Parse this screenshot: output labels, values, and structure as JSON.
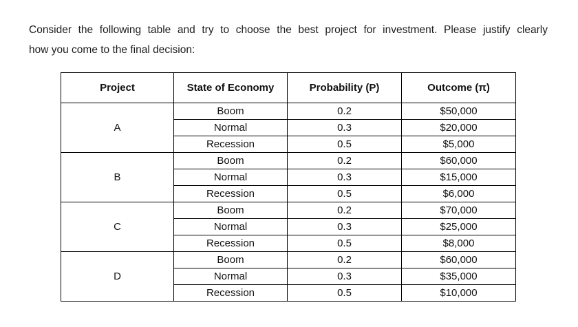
{
  "intro": {
    "lines": [
      "Consider the following table and try to choose the best project for investment. Please justify clearly",
      "how you come to the final decision:"
    ]
  },
  "table": {
    "headers": [
      "Project",
      "State of Economy",
      "Probability (P)",
      "Outcome (π)"
    ],
    "projects": [
      {
        "name": "A",
        "rows": [
          {
            "state": "Boom",
            "probability": "0.2",
            "outcome": "$50,000"
          },
          {
            "state": "Normal",
            "probability": "0.3",
            "outcome": "$20,000"
          },
          {
            "state": "Recession",
            "probability": "0.5",
            "outcome": "$5,000"
          }
        ]
      },
      {
        "name": "B",
        "rows": [
          {
            "state": "Boom",
            "probability": "0.2",
            "outcome": "$60,000"
          },
          {
            "state": "Normal",
            "probability": "0.3",
            "outcome": "$15,000"
          },
          {
            "state": "Recession",
            "probability": "0.5",
            "outcome": "$6,000"
          }
        ]
      },
      {
        "name": "C",
        "rows": [
          {
            "state": "Boom",
            "probability": "0.2",
            "outcome": "$70,000"
          },
          {
            "state": "Normal",
            "probability": "0.3",
            "outcome": "$25,000"
          },
          {
            "state": "Recession",
            "probability": "0.5",
            "outcome": "$8,000"
          }
        ]
      },
      {
        "name": "D",
        "rows": [
          {
            "state": "Boom",
            "probability": "0.2",
            "outcome": "$60,000"
          },
          {
            "state": "Normal",
            "probability": "0.3",
            "outcome": "$35,000"
          },
          {
            "state": "Recession",
            "probability": "0.5",
            "outcome": "$10,000"
          }
        ]
      }
    ]
  }
}
